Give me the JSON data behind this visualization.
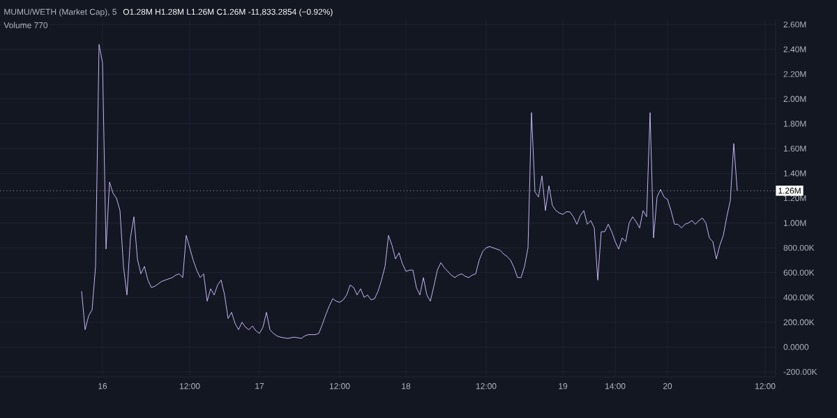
{
  "chart_data": {
    "type": "line",
    "annotations": [
      "MUMU/WETH (Market Cap), 5",
      "O1.28M H1.28M L1.26M C1.26M -11,833.2854 (−0.92%)",
      "Volume 770"
    ],
    "categories": [
      null,
      null,
      null,
      null,
      null,
      null,
      "16",
      null,
      null,
      null,
      null,
      null,
      null,
      null,
      null,
      null,
      null,
      null,
      null,
      null,
      null,
      null,
      null,
      null,
      null,
      null,
      null,
      null,
      null,
      null,
      null,
      "12:00",
      null,
      null,
      null,
      null,
      null,
      null,
      null,
      null,
      null,
      null,
      null,
      null,
      null,
      null,
      null,
      null,
      null,
      null,
      null,
      "17",
      null,
      null,
      null,
      null,
      null,
      null,
      null,
      null,
      null,
      null,
      null,
      null,
      null,
      null,
      null,
      null,
      null,
      null,
      null,
      null,
      null,
      null,
      "12:00",
      null,
      null,
      null,
      null,
      null,
      null,
      null,
      null,
      null,
      null,
      null,
      null,
      null,
      null,
      null,
      null,
      null,
      null,
      "18",
      null,
      null,
      null,
      null,
      null,
      null,
      null,
      null,
      null,
      null,
      null,
      null,
      null,
      null,
      null,
      null,
      null,
      null,
      null,
      null,
      null,
      null,
      "12:00",
      null,
      null,
      null,
      null,
      null,
      null,
      null,
      null,
      null,
      null,
      null,
      null,
      null,
      null,
      null,
      null,
      null,
      null,
      null,
      null,
      null,
      "19",
      null,
      null,
      null,
      null,
      null,
      null,
      null,
      null,
      null,
      null,
      null,
      null,
      null,
      null,
      "14:00",
      null,
      null,
      null,
      null,
      null,
      null,
      null,
      null,
      null,
      null,
      null,
      null,
      null,
      null,
      "20",
      null,
      null,
      null,
      null,
      null,
      null,
      null,
      null,
      null,
      null,
      null,
      null,
      null,
      null,
      null,
      null,
      null,
      null,
      null,
      null,
      null,
      null,
      null,
      null,
      null,
      null,
      null,
      "12:00"
    ],
    "values": [
      450000,
      140000,
      250000,
      300000,
      650000,
      2440000,
      2290000,
      790000,
      1330000,
      1240000,
      1200000,
      1100000,
      650000,
      420000,
      880000,
      1050000,
      710000,
      590000,
      650000,
      540000,
      480000,
      490000,
      510000,
      530000,
      540000,
      550000,
      560000,
      580000,
      590000,
      560000,
      900000,
      800000,
      700000,
      620000,
      560000,
      590000,
      370000,
      470000,
      420000,
      500000,
      540000,
      420000,
      230000,
      280000,
      190000,
      140000,
      200000,
      160000,
      140000,
      170000,
      130000,
      110000,
      160000,
      280000,
      140000,
      110000,
      90000,
      80000,
      75000,
      70000,
      75000,
      80000,
      75000,
      70000,
      90000,
      100000,
      100000,
      100000,
      110000,
      180000,
      260000,
      330000,
      390000,
      370000,
      360000,
      380000,
      420000,
      500000,
      480000,
      420000,
      470000,
      400000,
      420000,
      380000,
      390000,
      450000,
      540000,
      650000,
      900000,
      820000,
      710000,
      760000,
      670000,
      610000,
      620000,
      620000,
      480000,
      420000,
      560000,
      420000,
      370000,
      490000,
      620000,
      680000,
      640000,
      610000,
      580000,
      560000,
      580000,
      590000,
      570000,
      560000,
      580000,
      590000,
      700000,
      770000,
      800000,
      810000,
      800000,
      790000,
      780000,
      750000,
      730000,
      700000,
      640000,
      560000,
      560000,
      650000,
      800000,
      1890000,
      1250000,
      1210000,
      1380000,
      1100000,
      1300000,
      1140000,
      1100000,
      1080000,
      1070000,
      1090000,
      1090000,
      1050000,
      990000,
      1060000,
      1100000,
      990000,
      1020000,
      960000,
      540000,
      930000,
      930000,
      990000,
      930000,
      850000,
      790000,
      880000,
      850000,
      1000000,
      1050000,
      1010000,
      960000,
      1100000,
      1050000,
      1890000,
      880000,
      1210000,
      1270000,
      1210000,
      1190000,
      1100000,
      990000,
      990000,
      960000,
      990000,
      1000000,
      1020000,
      990000,
      1020000,
      1040000,
      1000000,
      880000,
      850000,
      710000,
      820000,
      900000,
      1050000,
      1180000,
      1640000,
      1260000,
      null,
      null,
      null,
      null,
      null,
      null,
      null,
      null
    ],
    "color": "#c4b5f5",
    "marker": "none",
    "line_style": "solid",
    "grid": true,
    "ylim": [
      -240000,
      2640000
    ],
    "yticks": [
      {
        "value": -200000,
        "label": "-200.00K"
      },
      {
        "value": 0,
        "label": "0.0000"
      },
      {
        "value": 200000,
        "label": "200.00K"
      },
      {
        "value": 400000,
        "label": "400.00K"
      },
      {
        "value": 600000,
        "label": "600.00K"
      },
      {
        "value": 800000,
        "label": "800.00K"
      },
      {
        "value": 1000000,
        "label": "1.00M"
      },
      {
        "value": 1200000,
        "label": "1.20M"
      },
      {
        "value": 1400000,
        "label": "1.40M"
      },
      {
        "value": 1600000,
        "label": "1.60M"
      },
      {
        "value": 1800000,
        "label": "1.80M"
      },
      {
        "value": 2000000,
        "label": "2.00M"
      },
      {
        "value": 2200000,
        "label": "2.20M"
      },
      {
        "value": 2400000,
        "label": "2.40M"
      },
      {
        "value": 2600000,
        "label": "2.60M"
      }
    ],
    "ref_lines": [
      {
        "axis": "y",
        "value": 1260000,
        "label": "1.26M",
        "line_style": "dotted",
        "color": "#ffffff"
      }
    ]
  }
}
